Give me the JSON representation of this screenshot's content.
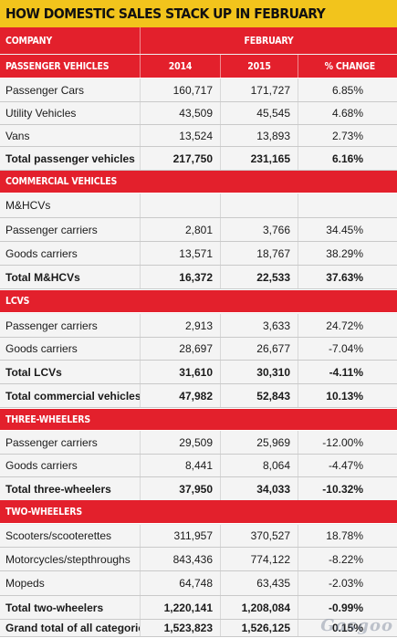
{
  "title": "HOW DOMESTIC SALES STACK UP IN FEBRUARY",
  "header": {
    "company": "COMPANY",
    "february": "FEBRUARY",
    "col_2014": "2014",
    "col_2015": "2015",
    "col_change": "% CHANGE"
  },
  "rows": [
    {
      "type": "header",
      "label": "PASSENGER VEHICLES",
      "v2014": "2014",
      "v2015": "2015",
      "change": "% CHANGE"
    },
    {
      "type": "data",
      "label": "Passenger Cars",
      "v2014": "160,717",
      "v2015": "171,727",
      "change": "6.85%"
    },
    {
      "type": "data",
      "label": "Utility Vehicles",
      "v2014": "43,509",
      "v2015": "45,545",
      "change": "4.68%"
    },
    {
      "type": "data",
      "label": "Vans",
      "v2014": "13,524",
      "v2015": "13,893",
      "change": "2.73%"
    },
    {
      "type": "total",
      "label": "Total passenger vehicles",
      "v2014": "217,750",
      "v2015": "231,165",
      "change": "6.16%"
    },
    {
      "type": "section",
      "label": "COMMERCIAL VEHICLES"
    },
    {
      "type": "data",
      "label": "M&HCVs",
      "v2014": "",
      "v2015": "",
      "change": ""
    },
    {
      "type": "data",
      "label": "Passenger carriers",
      "v2014": "2,801",
      "v2015": "3,766",
      "change": "34.45%"
    },
    {
      "type": "data",
      "label": "Goods carriers",
      "v2014": "13,571",
      "v2015": "18,767",
      "change": "38.29%"
    },
    {
      "type": "total",
      "label": "Total M&HCVs",
      "v2014": "16,372",
      "v2015": "22,533",
      "change": "37.63%"
    },
    {
      "type": "section",
      "label": "LCVS"
    },
    {
      "type": "data",
      "label": "Passenger carriers",
      "v2014": "2,913",
      "v2015": "3,633",
      "change": "24.72%"
    },
    {
      "type": "data",
      "label": "Goods carriers",
      "v2014": "28,697",
      "v2015": "26,677",
      "change": "-7.04%"
    },
    {
      "type": "total",
      "label": "Total LCVs",
      "v2014": "31,610",
      "v2015": "30,310",
      "change": "-4.11%"
    },
    {
      "type": "total",
      "label": "Total commercial vehicles",
      "v2014": "47,982",
      "v2015": "52,843",
      "change": "10.13%"
    },
    {
      "type": "section",
      "label": "THREE-WHEELERS"
    },
    {
      "type": "data",
      "label": "Passenger carriers",
      "v2014": "29,509",
      "v2015": "25,969",
      "change": "-12.00%"
    },
    {
      "type": "data",
      "label": "Goods carriers",
      "v2014": "8,441",
      "v2015": "8,064",
      "change": "-4.47%"
    },
    {
      "type": "total",
      "label": "Total three-wheelers",
      "v2014": "37,950",
      "v2015": "34,033",
      "change": "-10.32%"
    },
    {
      "type": "section",
      "label": "TWO-WHEELERS"
    },
    {
      "type": "data",
      "label": "Scooters/scooterettes",
      "v2014": "311,957",
      "v2015": "370,527",
      "change": "18.78%"
    },
    {
      "type": "data",
      "label": "Motorcycles/stepthroughs",
      "v2014": "843,436",
      "v2015": "774,122",
      "change": "-8.22%"
    },
    {
      "type": "data",
      "label": "Mopeds",
      "v2014": "64,748",
      "v2015": "63,435",
      "change": "-2.03%"
    },
    {
      "type": "total",
      "label": "Total two-wheelers",
      "v2014": "1,220,141",
      "v2015": "1,208,084",
      "change": "-0.99%"
    },
    {
      "type": "total",
      "label": "Grand total of all categories",
      "v2014": "1,523,823",
      "v2015": "1,526,125",
      "change": "0.15%"
    }
  ],
  "watermark": "Gasgoo",
  "colors": {
    "title_bg": "#f2c41c",
    "header_bg": "#e3202c",
    "row_bg": "#f4f4f4"
  }
}
